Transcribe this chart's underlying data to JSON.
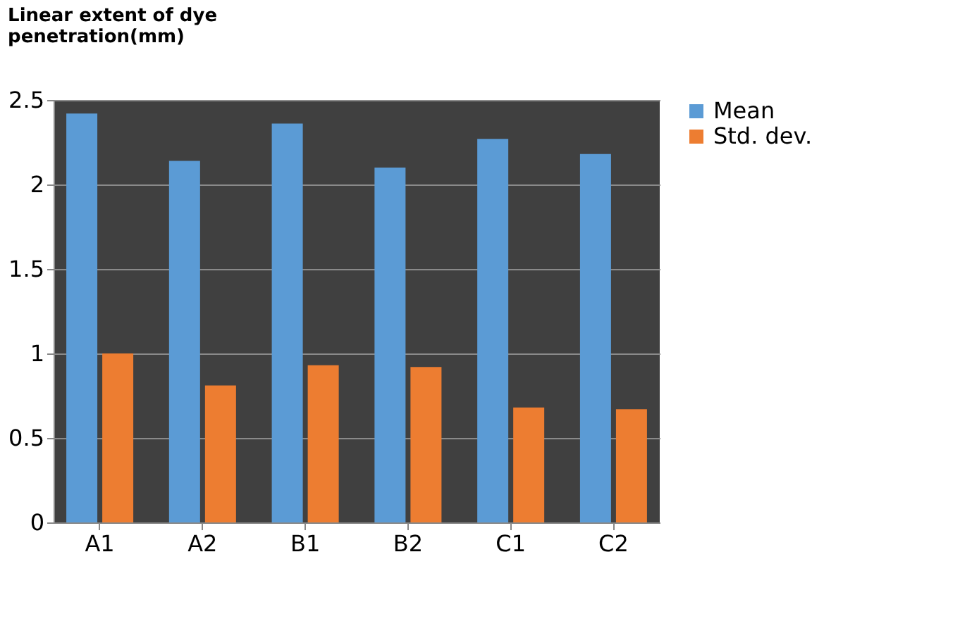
{
  "chart_data": {
    "type": "bar",
    "title": [
      "Linear extent of dye",
      "penetration(mm)"
    ],
    "categories": [
      "A1",
      "A2",
      "B1",
      "B2",
      "C1",
      "C2"
    ],
    "series": [
      {
        "name": "Mean",
        "color": "#5b9bd5",
        "values": [
          2.42,
          2.14,
          2.36,
          2.1,
          2.27,
          2.18
        ]
      },
      {
        "name": "Std. dev.",
        "color": "#ed7d31",
        "values": [
          1.0,
          0.81,
          0.93,
          0.92,
          0.68,
          0.67
        ]
      }
    ],
    "ylim": [
      0,
      2.5
    ],
    "yticks": [
      0,
      0.5,
      1,
      1.5,
      2,
      2.5
    ],
    "grid": "y",
    "legend": "right"
  }
}
